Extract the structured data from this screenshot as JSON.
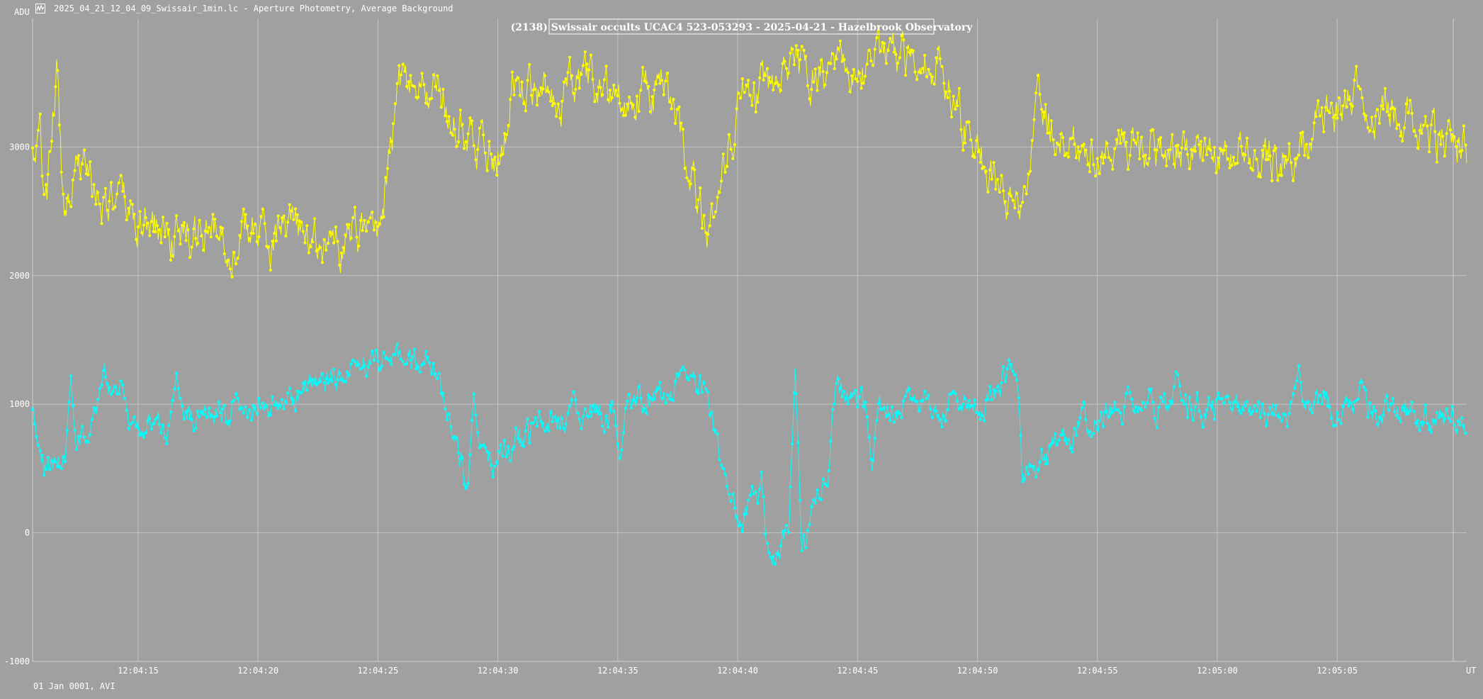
{
  "window": {
    "title": "2025_04_21_12_04_09_Swissair_1min.lc - Aperture Photometry, Average Background",
    "icon": "lightcurve-app-icon"
  },
  "colors": {
    "background": "#a0a0a0",
    "grid": "#c4c4c4",
    "text": "#ffffff",
    "target": "#00ffff",
    "comparison": "#ffff00"
  },
  "chart_data": {
    "type": "line",
    "title": "(2138) Swissair occults UCAC4 523-053293 - 2025-04-21 - Hazelbrook Observatory",
    "ylabel": "ADU",
    "xlabel": "UT",
    "footer": "01 Jan 0001, AVI",
    "ylim": [
      -1000,
      4000
    ],
    "xlim": [
      "12:04:10.6",
      "12:05:10.4"
    ],
    "grid": true,
    "y_ticks": [
      "3000",
      "2000",
      "1000",
      "0",
      "-1000"
    ],
    "y_tick_values": [
      3000,
      2000,
      1000,
      0,
      -1000
    ],
    "x_ticks": [
      "12:04:15",
      "12:04:20",
      "12:04:25",
      "12:04:30",
      "12:04:35",
      "12:04:40",
      "12:04:45",
      "12:04:50",
      "12:04:55",
      "12:05:00",
      "12:05:05"
    ],
    "time_start": "12:04:10.6",
    "time_step_s": 0.04,
    "frame_count": 1496,
    "series": [
      {
        "color": "#ffff00",
        "mean": 2870,
        "noise": 300,
        "keypoints": [
          [
            0,
            2950
          ],
          [
            0.3,
            3010
          ],
          [
            0.6,
            2560
          ],
          [
            1.0,
            3590
          ],
          [
            1.3,
            2500
          ],
          [
            1.8,
            3040
          ],
          [
            2.6,
            2650
          ],
          [
            5.0,
            2380
          ],
          [
            6.3,
            2290
          ],
          [
            9.5,
            2330
          ],
          [
            12.6,
            2240
          ],
          [
            14.4,
            2350
          ],
          [
            15.3,
            3430
          ],
          [
            16.6,
            3460
          ],
          [
            19.6,
            2920
          ],
          [
            20.0,
            3480
          ],
          [
            26.3,
            3430
          ],
          [
            28.2,
            2390
          ],
          [
            29.6,
            3460
          ],
          [
            37.7,
            3680
          ],
          [
            40.9,
            2390
          ],
          [
            42.1,
            3320
          ],
          [
            43.0,
            3050
          ],
          [
            52.8,
            2930
          ],
          [
            55.2,
            3440
          ],
          [
            59.8,
            2980
          ]
        ]
      },
      {
        "color": "#00ffff",
        "mean": 860,
        "noise": 180,
        "keypoints": [
          [
            0,
            880
          ],
          [
            0.5,
            520
          ],
          [
            1.2,
            560
          ],
          [
            2.0,
            620
          ],
          [
            3.0,
            1180
          ],
          [
            4.0,
            780
          ],
          [
            10.5,
            1050
          ],
          [
            13.7,
            1300
          ],
          [
            16.5,
            1350
          ],
          [
            18.0,
            450
          ],
          [
            22.5,
            950
          ],
          [
            26.4,
            1050
          ],
          [
            27.2,
            1220
          ],
          [
            28.0,
            1150
          ],
          [
            29.0,
            260
          ],
          [
            29.5,
            70
          ],
          [
            30.4,
            380
          ],
          [
            30.7,
            -250
          ],
          [
            31.6,
            80
          ],
          [
            32.3,
            -120
          ],
          [
            32.6,
            150
          ],
          [
            33.2,
            520
          ],
          [
            33.5,
            1150
          ],
          [
            34.1,
            970
          ],
          [
            39.5,
            980
          ],
          [
            40.8,
            1260
          ],
          [
            41.3,
            450
          ],
          [
            44.8,
            980
          ],
          [
            52.8,
            960
          ],
          [
            54.6,
            1000
          ],
          [
            59.8,
            880
          ]
        ],
        "spikes": [
          [
            1.6,
            1220
          ],
          [
            3.7,
            1210
          ],
          [
            6.0,
            1240
          ],
          [
            8.5,
            1100
          ],
          [
            13.4,
            1350
          ],
          [
            15.5,
            1300
          ],
          [
            18.4,
            1080
          ],
          [
            24.5,
            550
          ],
          [
            27.1,
            1300
          ],
          [
            31.8,
            1280
          ],
          [
            35.0,
            480
          ],
          [
            38.4,
            1100
          ],
          [
            41.0,
            1240
          ],
          [
            45.7,
            1150
          ],
          [
            47.7,
            1280
          ],
          [
            49.8,
            1080
          ],
          [
            52.8,
            1300
          ],
          [
            55.4,
            1200
          ]
        ]
      }
    ]
  }
}
